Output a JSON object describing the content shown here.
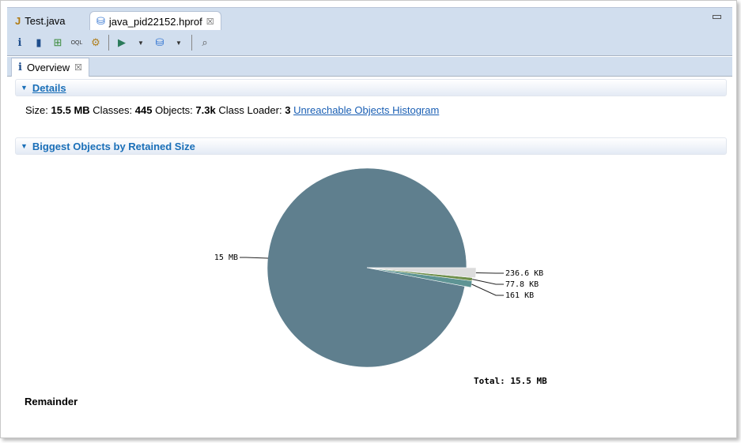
{
  "editor_tabs": [
    {
      "label": "Test.java",
      "icon": "java-file-warning-icon",
      "active": false
    },
    {
      "label": "java_pid22152.hprof",
      "icon": "heap-dump-icon",
      "active": true
    }
  ],
  "toolbar": {
    "icons": [
      "info-icon",
      "histogram-icon",
      "dominator-tree-icon",
      "oql-icon",
      "query-browser-icon",
      "run-report-icon",
      "heap-dump-overview-icon",
      "search-icon"
    ]
  },
  "sub_tab": {
    "label": "Overview",
    "icon": "info-icon"
  },
  "details": {
    "title": "Details",
    "size_label": "Size:",
    "size": "15.5 MB",
    "classes_label": "Classes:",
    "classes": "445",
    "objects_label": "Objects:",
    "objects": "7.3k",
    "loader_label": "Class Loader:",
    "loader": "3",
    "link": "Unreachable Objects Histogram"
  },
  "biggest": {
    "title": "Biggest Objects by Retained Size",
    "remainder": "Remainder"
  },
  "chart_data": {
    "type": "pie",
    "total": "Total: 15.5 MB",
    "slices": [
      {
        "label": "236.6 KB",
        "value_kb": 236.6,
        "color": "#dcdcdc"
      },
      {
        "label": "77.8 KB",
        "value_kb": 77.8,
        "color": "#6e8f4a"
      },
      {
        "label": "161 KB",
        "value_kb": 161,
        "color": "#5e9494"
      },
      {
        "label": "15 MB",
        "value_kb": 15395,
        "color": "#5f7f8e"
      }
    ]
  }
}
